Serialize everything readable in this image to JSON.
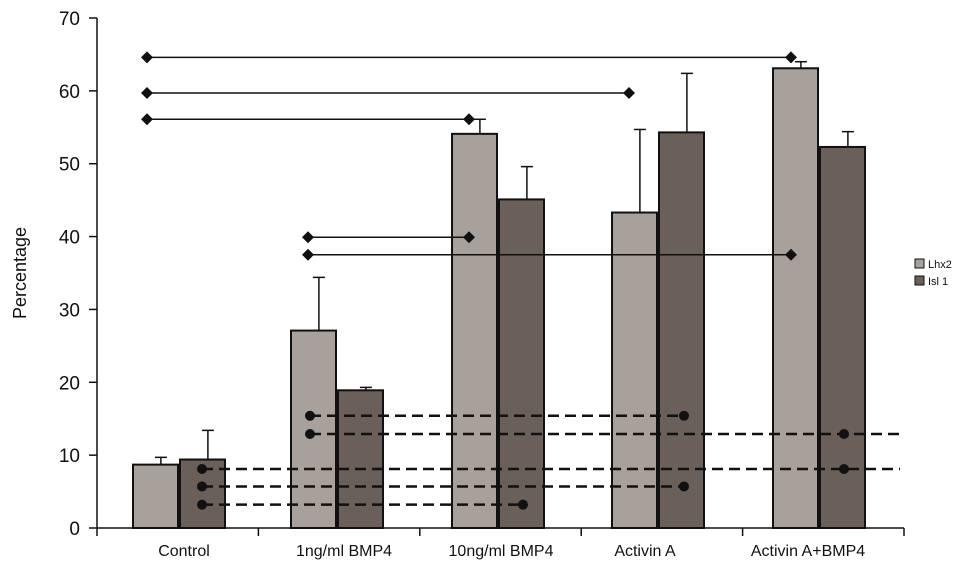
{
  "chart_data": {
    "type": "bar",
    "ylabel": "Percentage",
    "xlabel": "",
    "ylim": [
      0,
      70
    ],
    "yticks": [
      0,
      10,
      20,
      30,
      40,
      50,
      60,
      70
    ],
    "categories": [
      "Control",
      "1ng/ml BMP4",
      "10ng/ml BMP4",
      "Activin A",
      "Activin A+BMP4"
    ],
    "series": [
      {
        "name": "Lhx2",
        "color": "#a8a09b",
        "values": [
          8.7,
          27.1,
          54.1,
          43.3,
          63.1
        ],
        "errors": [
          1.0,
          7.3,
          2.0,
          11.4,
          0.9
        ]
      },
      {
        "name": "Isl 1",
        "color": "#6a5f59",
        "values": [
          9.4,
          18.9,
          45.1,
          54.3,
          52.3
        ],
        "errors": [
          4.0,
          0.4,
          4.5,
          8.1,
          2.1
        ]
      }
    ],
    "legend_position": "right",
    "significance_solid": [
      {
        "from": "Control",
        "to": "Activin A+BMP4",
        "y": 64.6
      },
      {
        "from": "Control",
        "to": "Activin A",
        "y": 59.7
      },
      {
        "from": "Control",
        "to": "10ng/ml BMP4",
        "y": 56.1
      },
      {
        "from": "1ng/ml BMP4",
        "to": "10ng/ml BMP4",
        "y": 39.9
      },
      {
        "from": "1ng/ml BMP4",
        "to": "Activin A+BMP4",
        "y": 37.5
      }
    ],
    "significance_dashed": [
      {
        "from": "1ng/ml BMP4",
        "to": "Activin A",
        "y": 15.4
      },
      {
        "from": "1ng/ml BMP4",
        "to": "Activin A+BMP4",
        "y": 12.9
      },
      {
        "from": "Control",
        "to": "Activin A+BMP4",
        "y": 8.1
      },
      {
        "from": "Control",
        "to": "Activin A",
        "y": 5.7
      },
      {
        "from": "Control",
        "to": "10ng/ml BMP4",
        "y": 3.2
      }
    ]
  }
}
